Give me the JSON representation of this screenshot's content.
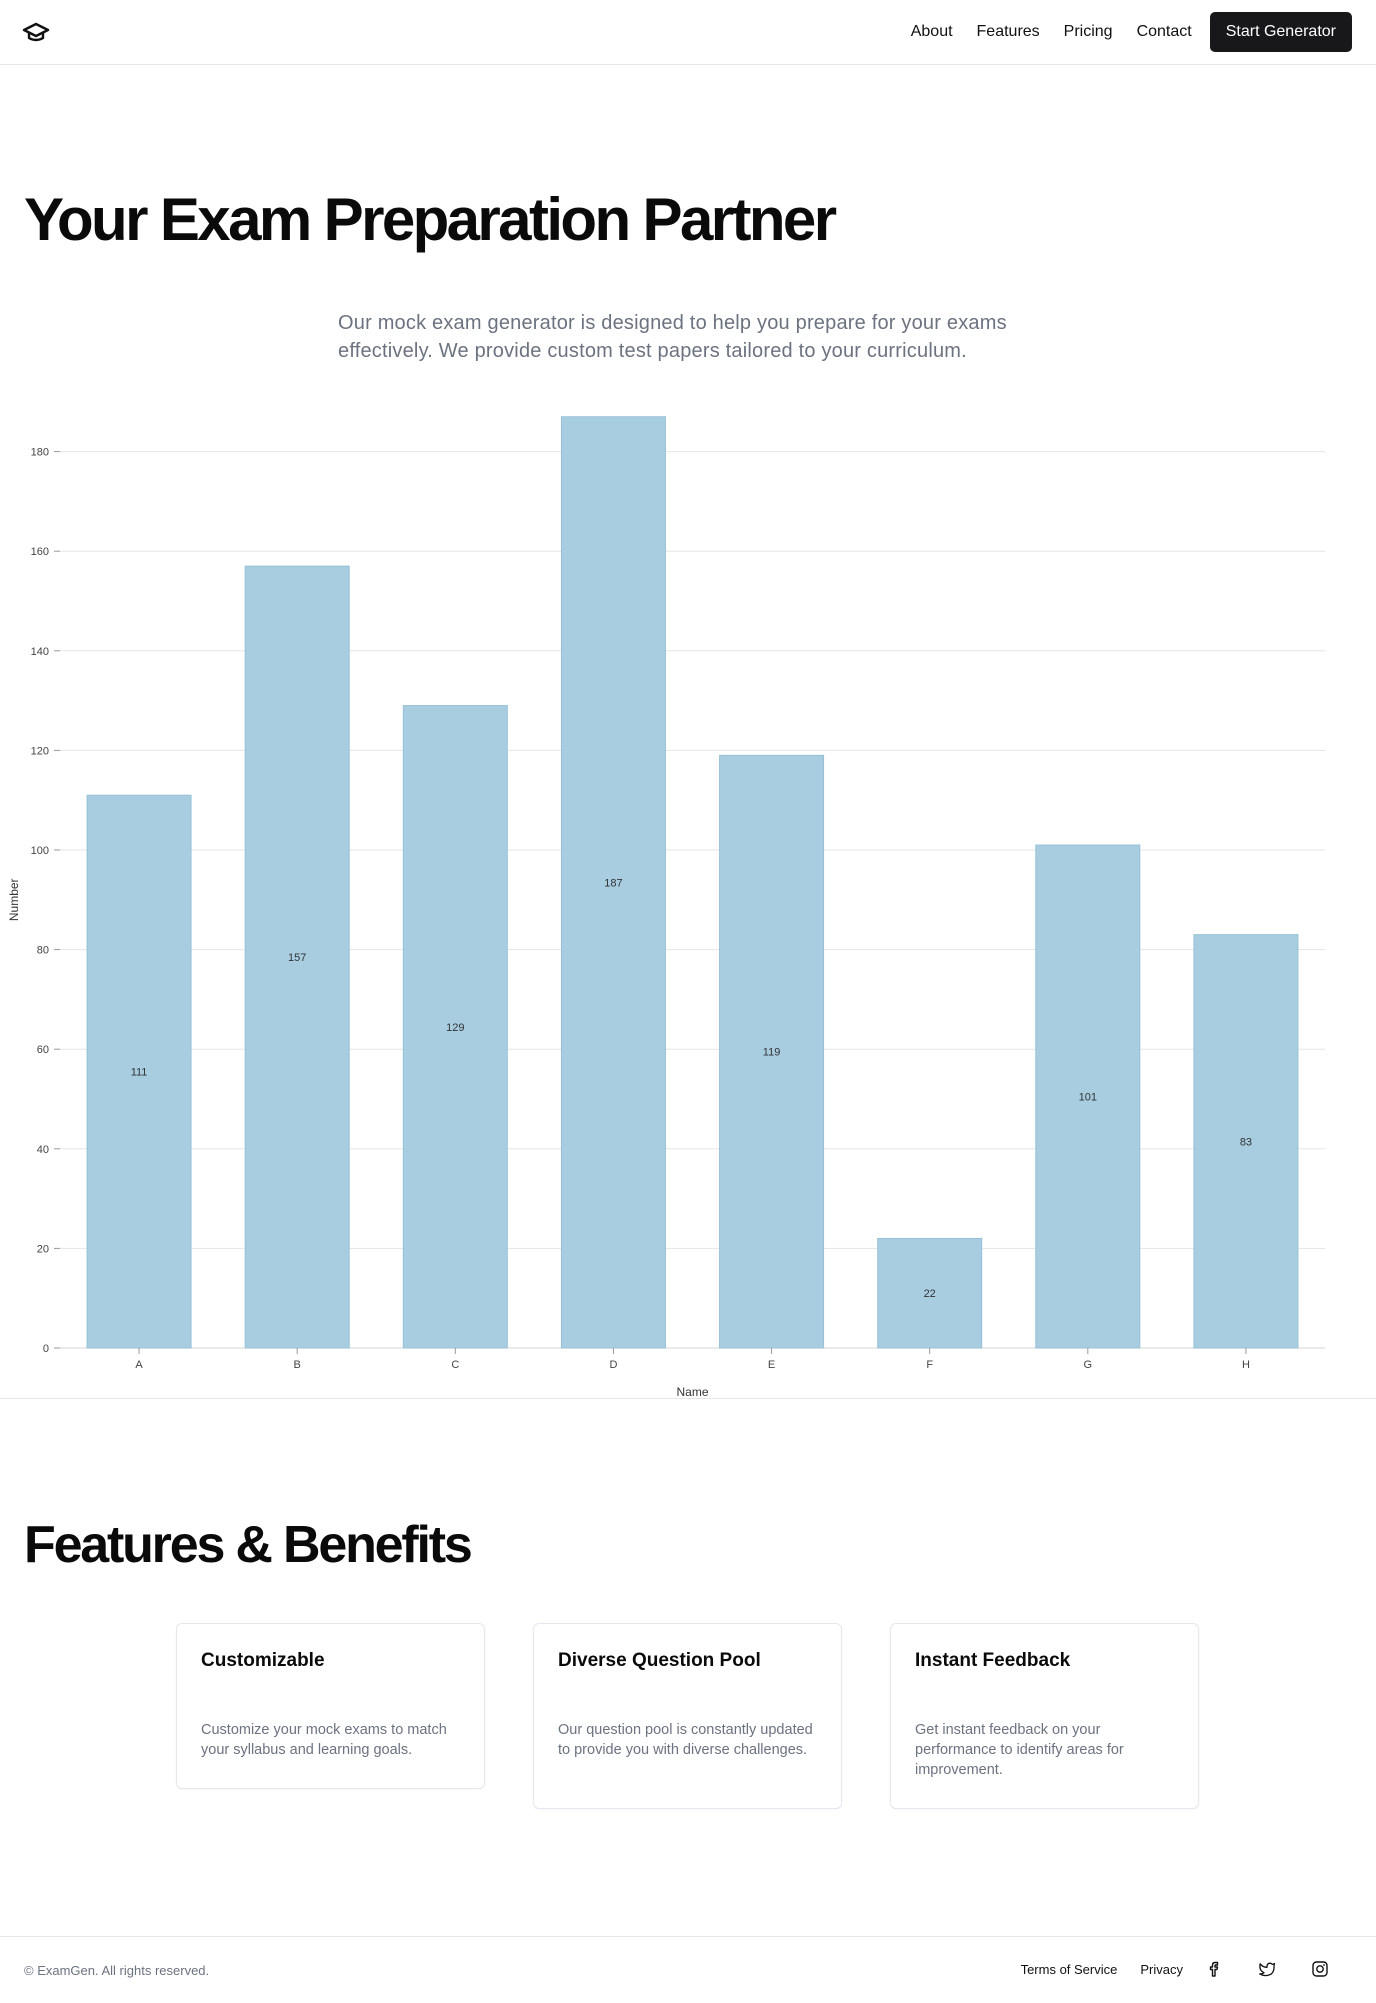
{
  "header": {
    "logo_icon": "graduation-cap-icon",
    "nav": [
      "About",
      "Features",
      "Pricing",
      "Contact"
    ],
    "cta_label": "Start Generator"
  },
  "hero": {
    "title": "Your Exam Preparation Partner",
    "subtitle": "Our mock exam generator is designed to help you prepare for your exams effectively. We provide custom test papers tailored to your curriculum."
  },
  "chart_data": {
    "type": "bar",
    "categories": [
      "A",
      "B",
      "C",
      "D",
      "E",
      "F",
      "G",
      "H"
    ],
    "values": [
      111,
      157,
      129,
      187,
      119,
      22,
      101,
      83
    ],
    "xlabel": "Name",
    "ylabel": "Number",
    "ylim": [
      0,
      187
    ],
    "yticks": [
      0,
      20,
      40,
      60,
      80,
      100,
      120,
      140,
      160,
      180
    ],
    "grid": true,
    "bar_color": "#a8cde1",
    "data_labels": true
  },
  "features": {
    "title": "Features & Benefits",
    "cards": [
      {
        "title": "Customizable",
        "text": "Customize your mock exams to match your syllabus and learning goals."
      },
      {
        "title": "Diverse Question Pool",
        "text": "Our question pool is constantly updated to provide you with diverse challenges."
      },
      {
        "title": "Instant Feedback",
        "text": "Get instant feedback on your performance to identify areas for improvement."
      }
    ]
  },
  "footer": {
    "copyright": "© ExamGen. All rights reserved.",
    "links": [
      "Terms of Service",
      "Privacy"
    ],
    "social_icons": [
      "facebook-icon",
      "twitter-icon",
      "instagram-icon"
    ]
  }
}
